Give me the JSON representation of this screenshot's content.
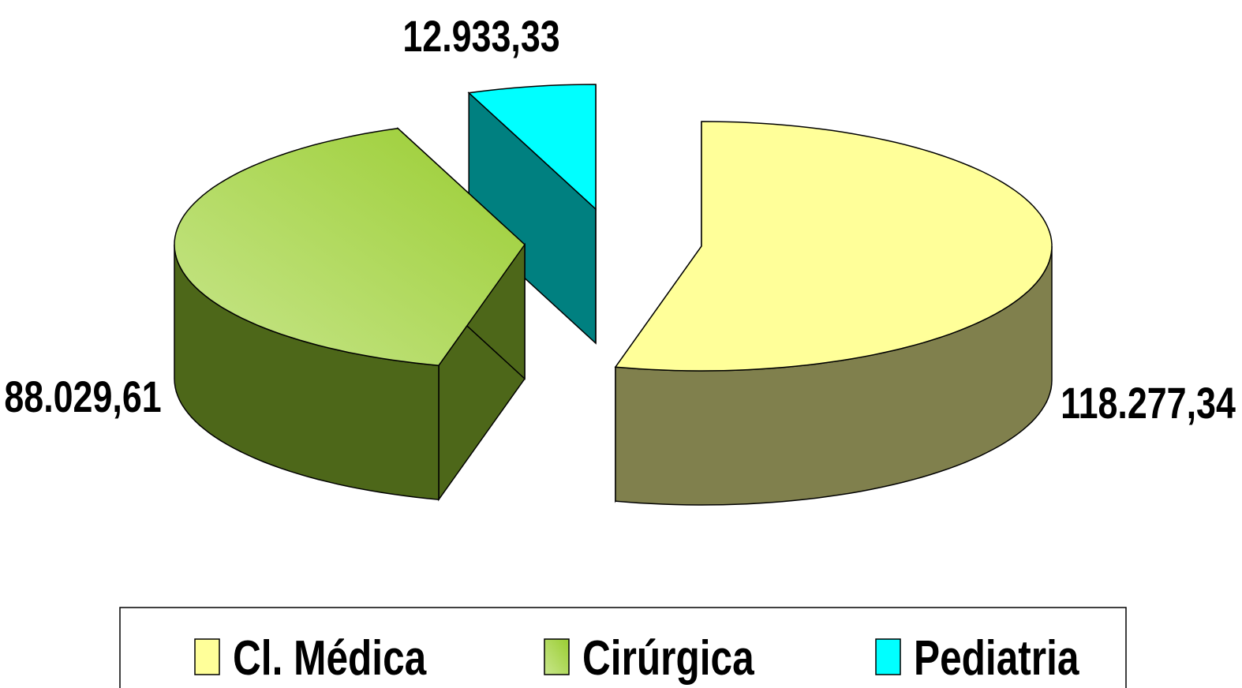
{
  "chart_data": {
    "type": "pie",
    "categories": [
      "Cl. Médica",
      "Cirúrgica",
      "Pediatria"
    ],
    "values": [
      118277.34,
      88029.61,
      12933.33
    ],
    "value_labels": [
      "118.277,34",
      "88.029,61",
      "12.933,33"
    ],
    "colors": [
      "#ffff99",
      "#9acd32",
      "#00ffff"
    ],
    "legend": "bottom"
  }
}
